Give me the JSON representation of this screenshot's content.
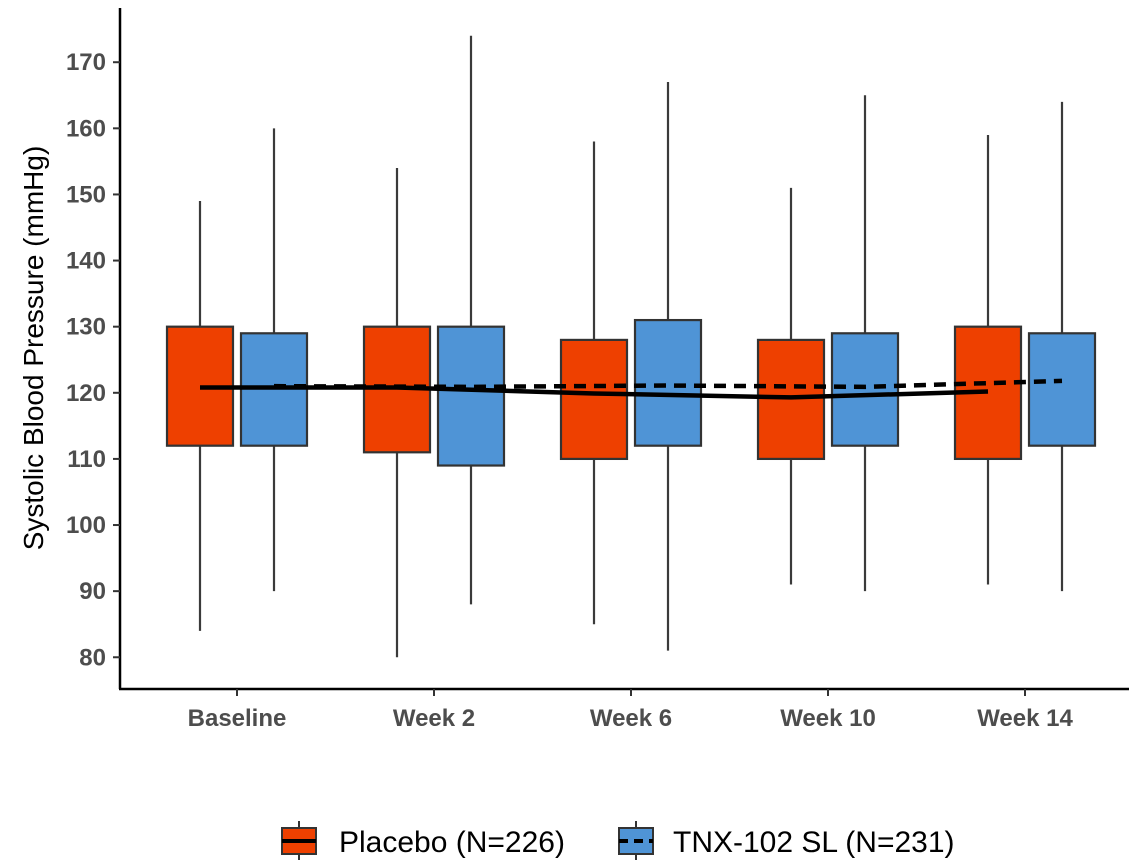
{
  "chart_data": {
    "type": "box",
    "ylabel": "Systolic Blood Pressure (mmHg)",
    "xlabel": "",
    "ylim": [
      75.2,
      178.2
    ],
    "yticks": [
      80,
      90,
      100,
      110,
      120,
      130,
      140,
      150,
      160,
      170
    ],
    "categories": [
      "Baseline",
      "Week 2",
      "Week 6",
      "Week 10",
      "Week 14"
    ],
    "grid": false,
    "legend_position": "bottom",
    "series": [
      {
        "name": "Placebo (N=226)",
        "color": "#ee4000",
        "line_style": "solid",
        "boxes": [
          {
            "min": 84,
            "q1": 112,
            "q3": 130,
            "max": 149
          },
          {
            "min": 80,
            "q1": 111,
            "q3": 130,
            "max": 154
          },
          {
            "min": 85,
            "q1": 110,
            "q3": 128,
            "max": 158
          },
          {
            "min": 91,
            "q1": 110,
            "q3": 128,
            "max": 151
          },
          {
            "min": 91,
            "q1": 110,
            "q3": 130,
            "max": 159
          }
        ],
        "mean_line": [
          120.8,
          120.8,
          119.9,
          119.3,
          120.2
        ]
      },
      {
        "name": "TNX-102 SL (N=231)",
        "color": "#4f94d6",
        "line_style": "dashed",
        "boxes": [
          {
            "min": 90,
            "q1": 112,
            "q3": 129,
            "max": 160
          },
          {
            "min": 88,
            "q1": 109,
            "q3": 130,
            "max": 174
          },
          {
            "min": 81,
            "q1": 112,
            "q3": 131,
            "max": 167
          },
          {
            "min": 90,
            "q1": 112,
            "q3": 129,
            "max": 165
          },
          {
            "min": 90,
            "q1": 112,
            "q3": 129,
            "max": 164
          }
        ],
        "mean_line": [
          121.0,
          120.9,
          121.1,
          120.9,
          121.8
        ]
      }
    ]
  }
}
